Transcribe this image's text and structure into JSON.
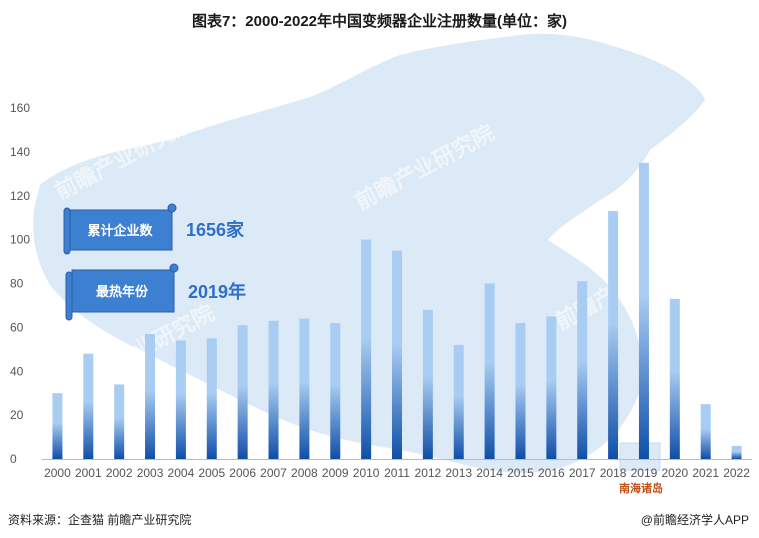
{
  "title": "图表7：2000-2022年中国变频器企业注册数量(单位：家)",
  "footer": {
    "source": "资料来源：企查猫 前瞻产业研究院",
    "brand": "@前瞻经济学人APP"
  },
  "callouts": [
    {
      "label": "累计企业数",
      "value": "1656家"
    },
    {
      "label": "最热年份",
      "value": "2019年"
    }
  ],
  "map_label": "南海诸岛",
  "watermark": "前瞻产业研究院",
  "colors": {
    "bar_top": "#a9cdf2",
    "bar_bottom": "#0f4ea8",
    "map_fill": "#dce9f6",
    "callout_fill": "#3d7fd0",
    "callout_value": "#2f6fc8"
  },
  "chart_data": {
    "type": "bar",
    "title": "图表7：2000-2022年中国变频器企业注册数量(单位：家)",
    "xlabel": "",
    "ylabel": "",
    "categories": [
      "2000",
      "2001",
      "2002",
      "2003",
      "2004",
      "2005",
      "2006",
      "2007",
      "2008",
      "2009",
      "2010",
      "2011",
      "2012",
      "2013",
      "2014",
      "2015",
      "2016",
      "2017",
      "2018",
      "2019",
      "2020",
      "2021",
      "2022"
    ],
    "values": [
      30,
      48,
      34,
      57,
      54,
      55,
      61,
      63,
      64,
      62,
      100,
      95,
      68,
      52,
      80,
      62,
      65,
      81,
      113,
      135,
      73,
      25,
      6
    ],
    "ylim": [
      0,
      160
    ],
    "yticks": [
      0,
      20,
      40,
      60,
      80,
      100,
      120,
      140,
      160
    ],
    "grid": false,
    "legend": "none"
  }
}
